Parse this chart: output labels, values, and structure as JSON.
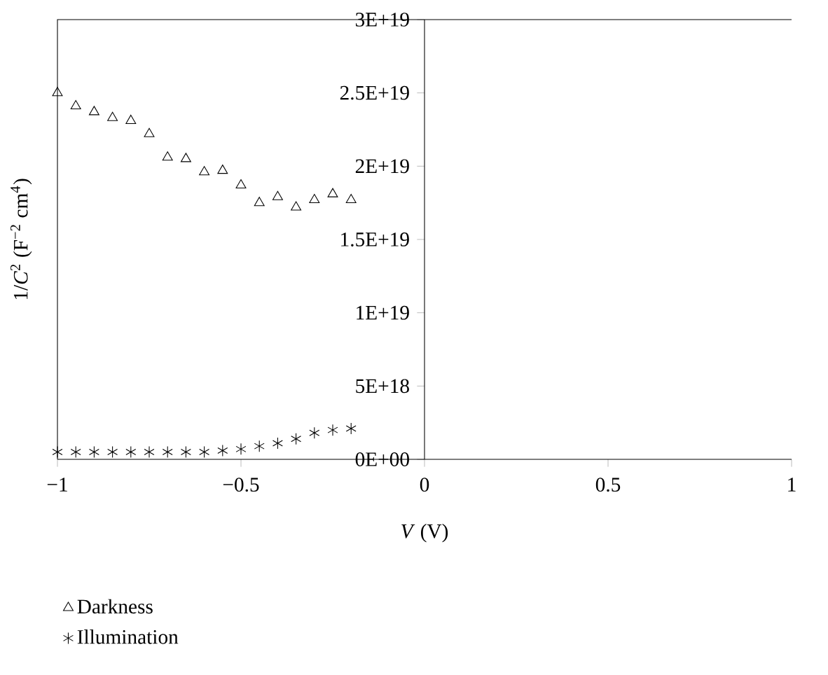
{
  "chart_data": {
    "type": "scatter",
    "xlabel": "*V* (V)",
    "ylabel": "1/*C*$^{2}$ (F$^{−2}$ cm$^{4}$)",
    "x": [
      -1,
      -0.95,
      -0.9,
      -0.85,
      -0.8,
      -0.75,
      -0.7,
      -0.65,
      -0.6,
      -0.55,
      -0.5,
      -0.45,
      -0.4,
      -0.35,
      -0.3,
      -0.25,
      -0.2
    ],
    "series": [
      {
        "name": "Darkness",
        "color": "#000000",
        "marker": "triangle",
        "values": [
          2.5e+19,
          2.41e+19,
          2.37e+19,
          2.33e+19,
          2.31e+19,
          2.22e+19,
          2.06e+19,
          2.05e+19,
          1.96e+19,
          1.97e+19,
          1.87e+19,
          1.75e+19,
          1.79e+19,
          1.72e+19,
          1.77e+19,
          1.81e+19,
          1.77e+19
        ]
      },
      {
        "name": "Illumination",
        "color": "#000000",
        "marker": "cross",
        "values": [
          5e+17,
          5e+17,
          5e+17,
          5e+17,
          5e+17,
          5e+17,
          5e+17,
          5e+17,
          5e+17,
          6e+17,
          7e+17,
          9e+17,
          1.1e+18,
          1.4e+18,
          1.8e+18,
          2e+18,
          2.1e+18
        ]
      }
    ],
    "xlim": [
      -1,
      1
    ],
    "ylim": [
      0,
      3e+19
    ],
    "xticks": [
      {
        "value": -1,
        "label": "−1"
      },
      {
        "value": -0.5,
        "label": "−0.5"
      },
      0,
      0.5,
      1
    ],
    "yticks": [
      {
        "value": 0,
        "label": "0E+00"
      },
      {
        "value": 5e+18,
        "label": "5E+18"
      },
      {
        "value": 1e+19,
        "label": "1E+19"
      },
      {
        "value": 1.5e+19,
        "label": "1.5E+19"
      },
      {
        "value": 2e+19,
        "label": "2E+19"
      },
      {
        "value": 2.5e+19,
        "label": "2.5E+19"
      },
      {
        "value": 3e+19,
        "label": "3E+19"
      }
    ],
    "legend": "bottom"
  }
}
